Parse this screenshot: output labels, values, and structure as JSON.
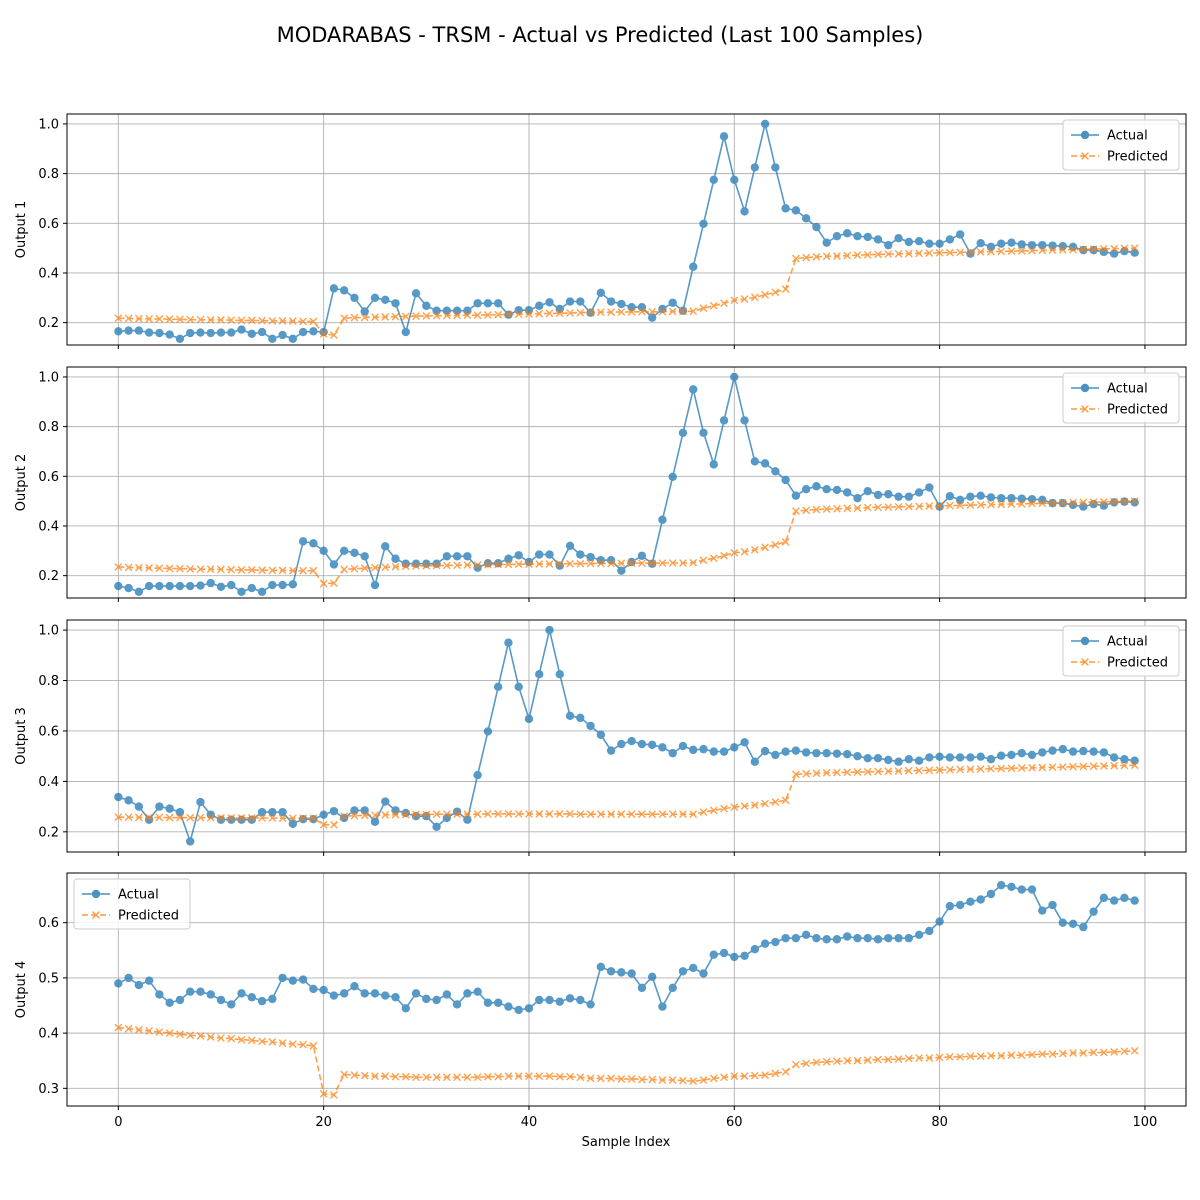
{
  "figure": {
    "title": "MODARABAS - TRSM - Actual vs Predicted (Last 100 Samples)",
    "xlabel": "Sample Index"
  },
  "colors": {
    "actual": "#1f77b4",
    "predicted": "#ff7f0e",
    "grid": "#b0b0b0"
  },
  "chart_data": [
    {
      "type": "line",
      "ylabel": "Output 1",
      "xlim": [
        -5,
        104
      ],
      "ylim": [
        0.11,
        1.04
      ],
      "xticks": [
        0,
        20,
        40,
        60,
        80,
        100
      ],
      "yticks": [
        0.2,
        0.4,
        0.6,
        0.8,
        1.0
      ],
      "ytick_labels": [
        "0.2",
        "0.4",
        "0.6",
        "0.8",
        "1.0"
      ],
      "legend": "upper right",
      "grid": true,
      "series": [
        {
          "name": "Actual",
          "style": "solid-circle",
          "values": [
            0.165,
            0.168,
            0.168,
            0.16,
            0.158,
            0.152,
            0.135,
            0.158,
            0.16,
            0.158,
            0.16,
            0.16,
            0.172,
            0.155,
            0.162,
            0.135,
            0.15,
            0.135,
            0.162,
            0.165,
            0.162,
            0.338,
            0.33,
            0.3,
            0.245,
            0.3,
            0.292,
            0.278,
            0.162,
            0.318,
            0.268,
            0.248,
            0.248,
            0.248,
            0.248,
            0.278,
            0.278,
            0.278,
            0.232,
            0.25,
            0.25,
            0.268,
            0.282,
            0.255,
            0.285,
            0.285,
            0.24,
            0.32,
            0.285,
            0.275,
            0.262,
            0.262,
            0.22,
            0.255,
            0.28,
            0.248,
            0.425,
            0.598,
            0.775,
            0.95,
            0.775,
            0.648,
            0.825,
            1.0,
            0.825,
            0.66,
            0.652,
            0.62,
            0.585,
            0.522,
            0.548,
            0.56,
            0.548,
            0.545,
            0.535,
            0.512,
            0.54,
            0.525,
            0.528,
            0.518,
            0.518,
            0.535,
            0.555,
            0.478,
            0.52,
            0.505,
            0.518,
            0.522,
            0.515,
            0.512,
            0.512,
            0.51,
            0.508,
            0.505,
            0.492,
            0.492,
            0.485,
            0.478,
            0.488,
            0.482
          ]
        },
        {
          "name": "Predicted",
          "style": "dashed-x",
          "values": [
            0.218,
            0.217,
            0.216,
            0.215,
            0.215,
            0.214,
            0.213,
            0.212,
            0.212,
            0.211,
            0.211,
            0.21,
            0.209,
            0.209,
            0.208,
            0.207,
            0.207,
            0.206,
            0.205,
            0.205,
            0.155,
            0.15,
            0.218,
            0.22,
            0.221,
            0.222,
            0.223,
            0.224,
            0.225,
            0.226,
            0.227,
            0.228,
            0.229,
            0.229,
            0.23,
            0.23,
            0.231,
            0.232,
            0.233,
            0.234,
            0.235,
            0.236,
            0.237,
            0.238,
            0.239,
            0.24,
            0.241,
            0.242,
            0.242,
            0.243,
            0.243,
            0.244,
            0.244,
            0.244,
            0.245,
            0.245,
            0.246,
            0.258,
            0.268,
            0.278,
            0.29,
            0.295,
            0.302,
            0.312,
            0.322,
            0.335,
            0.458,
            0.462,
            0.465,
            0.467,
            0.468,
            0.47,
            0.472,
            0.473,
            0.475,
            0.476,
            0.477,
            0.478,
            0.479,
            0.48,
            0.481,
            0.482,
            0.483,
            0.484,
            0.485,
            0.486,
            0.487,
            0.488,
            0.489,
            0.49,
            0.491,
            0.492,
            0.493,
            0.494,
            0.495,
            0.496,
            0.497,
            0.498,
            0.499,
            0.5
          ]
        }
      ]
    },
    {
      "type": "line",
      "ylabel": "Output 2",
      "xlim": [
        -5,
        104
      ],
      "ylim": [
        0.11,
        1.04
      ],
      "xticks": [
        0,
        20,
        40,
        60,
        80,
        100
      ],
      "yticks": [
        0.2,
        0.4,
        0.6,
        0.8,
        1.0
      ],
      "ytick_labels": [
        "0.2",
        "0.4",
        "0.6",
        "0.8",
        "1.0"
      ],
      "legend": "upper right",
      "grid": true,
      "series": [
        {
          "name": "Actual",
          "style": "solid-circle",
          "values": [
            0.158,
            0.15,
            0.135,
            0.158,
            0.158,
            0.158,
            0.158,
            0.158,
            0.16,
            0.17,
            0.155,
            0.162,
            0.135,
            0.15,
            0.135,
            0.162,
            0.162,
            0.165,
            0.338,
            0.33,
            0.3,
            0.245,
            0.3,
            0.292,
            0.278,
            0.162,
            0.318,
            0.268,
            0.248,
            0.248,
            0.248,
            0.248,
            0.278,
            0.278,
            0.278,
            0.232,
            0.25,
            0.25,
            0.268,
            0.282,
            0.255,
            0.285,
            0.285,
            0.24,
            0.32,
            0.285,
            0.275,
            0.262,
            0.262,
            0.22,
            0.255,
            0.28,
            0.248,
            0.425,
            0.598,
            0.775,
            0.95,
            0.775,
            0.648,
            0.825,
            1.0,
            0.825,
            0.66,
            0.652,
            0.62,
            0.585,
            0.522,
            0.548,
            0.56,
            0.548,
            0.545,
            0.535,
            0.512,
            0.54,
            0.525,
            0.528,
            0.518,
            0.518,
            0.535,
            0.555,
            0.478,
            0.52,
            0.505,
            0.518,
            0.522,
            0.515,
            0.512,
            0.512,
            0.51,
            0.508,
            0.505,
            0.492,
            0.492,
            0.485,
            0.478,
            0.488,
            0.482,
            0.495,
            0.498,
            0.495
          ]
        },
        {
          "name": "Predicted",
          "style": "dashed-x",
          "values": [
            0.235,
            0.233,
            0.232,
            0.231,
            0.23,
            0.229,
            0.228,
            0.227,
            0.226,
            0.226,
            0.225,
            0.224,
            0.223,
            0.223,
            0.222,
            0.221,
            0.221,
            0.22,
            0.22,
            0.22,
            0.168,
            0.17,
            0.225,
            0.228,
            0.23,
            0.232,
            0.234,
            0.236,
            0.238,
            0.239,
            0.24,
            0.241,
            0.241,
            0.242,
            0.243,
            0.243,
            0.244,
            0.245,
            0.245,
            0.246,
            0.246,
            0.247,
            0.247,
            0.248,
            0.248,
            0.248,
            0.249,
            0.249,
            0.249,
            0.25,
            0.25,
            0.25,
            0.25,
            0.251,
            0.251,
            0.251,
            0.252,
            0.262,
            0.27,
            0.28,
            0.292,
            0.296,
            0.304,
            0.314,
            0.324,
            0.336,
            0.46,
            0.463,
            0.466,
            0.468,
            0.469,
            0.471,
            0.472,
            0.474,
            0.475,
            0.476,
            0.477,
            0.478,
            0.479,
            0.48,
            0.481,
            0.482,
            0.483,
            0.484,
            0.485,
            0.486,
            0.487,
            0.488,
            0.489,
            0.49,
            0.491,
            0.492,
            0.493,
            0.494,
            0.495,
            0.496,
            0.497,
            0.498,
            0.499,
            0.5
          ]
        }
      ]
    },
    {
      "type": "line",
      "ylabel": "Output 3",
      "xlim": [
        -5,
        104
      ],
      "ylim": [
        0.12,
        1.04
      ],
      "xticks": [
        0,
        20,
        40,
        60,
        80,
        100
      ],
      "yticks": [
        0.2,
        0.4,
        0.6,
        0.8,
        1.0
      ],
      "ytick_labels": [
        "0.2",
        "0.4",
        "0.6",
        "0.8",
        "1.0"
      ],
      "legend": "upper right",
      "grid": true,
      "series": [
        {
          "name": "Actual",
          "style": "solid-circle",
          "values": [
            0.338,
            0.325,
            0.3,
            0.248,
            0.3,
            0.292,
            0.278,
            0.162,
            0.318,
            0.268,
            0.248,
            0.248,
            0.248,
            0.248,
            0.278,
            0.278,
            0.278,
            0.232,
            0.25,
            0.25,
            0.268,
            0.282,
            0.255,
            0.285,
            0.285,
            0.24,
            0.32,
            0.285,
            0.275,
            0.262,
            0.262,
            0.22,
            0.255,
            0.28,
            0.248,
            0.425,
            0.598,
            0.775,
            0.95,
            0.775,
            0.648,
            0.825,
            1.0,
            0.825,
            0.66,
            0.652,
            0.62,
            0.585,
            0.522,
            0.548,
            0.56,
            0.548,
            0.545,
            0.535,
            0.512,
            0.54,
            0.525,
            0.528,
            0.518,
            0.518,
            0.535,
            0.555,
            0.478,
            0.52,
            0.505,
            0.518,
            0.522,
            0.515,
            0.512,
            0.512,
            0.51,
            0.508,
            0.5,
            0.492,
            0.492,
            0.485,
            0.478,
            0.488,
            0.482,
            0.495,
            0.498,
            0.495,
            0.495,
            0.495,
            0.498,
            0.488,
            0.502,
            0.505,
            0.512,
            0.505,
            0.515,
            0.522,
            0.528,
            0.518,
            0.52,
            0.518,
            0.515,
            0.495,
            0.488,
            0.482
          ]
        },
        {
          "name": "Predicted",
          "style": "dashed-x",
          "values": [
            0.258,
            0.258,
            0.257,
            0.257,
            0.257,
            0.256,
            0.256,
            0.256,
            0.256,
            0.256,
            0.255,
            0.255,
            0.255,
            0.255,
            0.255,
            0.255,
            0.254,
            0.254,
            0.254,
            0.254,
            0.228,
            0.228,
            0.262,
            0.264,
            0.265,
            0.266,
            0.267,
            0.268,
            0.268,
            0.269,
            0.269,
            0.27,
            0.27,
            0.27,
            0.27,
            0.27,
            0.271,
            0.271,
            0.271,
            0.271,
            0.271,
            0.271,
            0.271,
            0.271,
            0.271,
            0.27,
            0.27,
            0.27,
            0.27,
            0.27,
            0.27,
            0.27,
            0.27,
            0.27,
            0.27,
            0.27,
            0.27,
            0.278,
            0.285,
            0.292,
            0.298,
            0.302,
            0.306,
            0.312,
            0.318,
            0.325,
            0.428,
            0.43,
            0.432,
            0.434,
            0.435,
            0.436,
            0.437,
            0.438,
            0.439,
            0.44,
            0.441,
            0.442,
            0.443,
            0.444,
            0.445,
            0.446,
            0.447,
            0.448,
            0.449,
            0.45,
            0.451,
            0.452,
            0.453,
            0.454,
            0.455,
            0.456,
            0.457,
            0.458,
            0.459,
            0.46,
            0.461,
            0.462,
            0.463,
            0.464
          ]
        }
      ]
    },
    {
      "type": "line",
      "ylabel": "Output 4",
      "xlim": [
        -5,
        104
      ],
      "ylim": [
        0.268,
        0.69
      ],
      "xticks": [
        0,
        20,
        40,
        60,
        80,
        100
      ],
      "yticks": [
        0.3,
        0.4,
        0.5,
        0.6
      ],
      "ytick_labels": [
        "0.3",
        "0.4",
        "0.5",
        "0.6"
      ],
      "legend": "upper left",
      "grid": true,
      "series": [
        {
          "name": "Actual",
          "style": "solid-circle",
          "values": [
            0.49,
            0.5,
            0.487,
            0.495,
            0.47,
            0.455,
            0.46,
            0.475,
            0.475,
            0.47,
            0.46,
            0.452,
            0.472,
            0.465,
            0.458,
            0.462,
            0.5,
            0.495,
            0.497,
            0.48,
            0.478,
            0.468,
            0.472,
            0.485,
            0.472,
            0.472,
            0.468,
            0.465,
            0.445,
            0.472,
            0.462,
            0.46,
            0.47,
            0.452,
            0.472,
            0.475,
            0.455,
            0.455,
            0.448,
            0.442,
            0.445,
            0.46,
            0.46,
            0.457,
            0.463,
            0.46,
            0.452,
            0.52,
            0.512,
            0.51,
            0.508,
            0.482,
            0.502,
            0.448,
            0.482,
            0.512,
            0.518,
            0.508,
            0.542,
            0.545,
            0.538,
            0.54,
            0.552,
            0.562,
            0.565,
            0.572,
            0.572,
            0.578,
            0.572,
            0.57,
            0.57,
            0.575,
            0.572,
            0.572,
            0.57,
            0.572,
            0.572,
            0.572,
            0.578,
            0.585,
            0.602,
            0.63,
            0.632,
            0.638,
            0.642,
            0.652,
            0.668,
            0.665,
            0.66,
            0.66,
            0.622,
            0.632,
            0.6,
            0.598,
            0.592,
            0.62,
            0.645,
            0.64,
            0.645,
            0.64
          ]
        },
        {
          "name": "Predicted",
          "style": "dashed-x",
          "values": [
            0.41,
            0.408,
            0.406,
            0.404,
            0.402,
            0.4,
            0.398,
            0.396,
            0.395,
            0.393,
            0.391,
            0.39,
            0.388,
            0.387,
            0.385,
            0.384,
            0.382,
            0.38,
            0.379,
            0.377,
            0.29,
            0.288,
            0.325,
            0.324,
            0.323,
            0.322,
            0.322,
            0.321,
            0.321,
            0.32,
            0.32,
            0.32,
            0.32,
            0.32,
            0.32,
            0.32,
            0.321,
            0.321,
            0.322,
            0.322,
            0.322,
            0.322,
            0.322,
            0.321,
            0.321,
            0.32,
            0.318,
            0.318,
            0.318,
            0.317,
            0.317,
            0.316,
            0.316,
            0.315,
            0.315,
            0.314,
            0.313,
            0.315,
            0.318,
            0.32,
            0.322,
            0.322,
            0.323,
            0.324,
            0.327,
            0.33,
            0.343,
            0.345,
            0.347,
            0.348,
            0.349,
            0.35,
            0.35,
            0.351,
            0.352,
            0.352,
            0.353,
            0.354,
            0.355,
            0.355,
            0.356,
            0.357,
            0.357,
            0.358,
            0.358,
            0.359,
            0.359,
            0.36,
            0.36,
            0.361,
            0.362,
            0.362,
            0.363,
            0.364,
            0.364,
            0.365,
            0.365,
            0.366,
            0.367,
            0.368
          ]
        }
      ]
    }
  ]
}
